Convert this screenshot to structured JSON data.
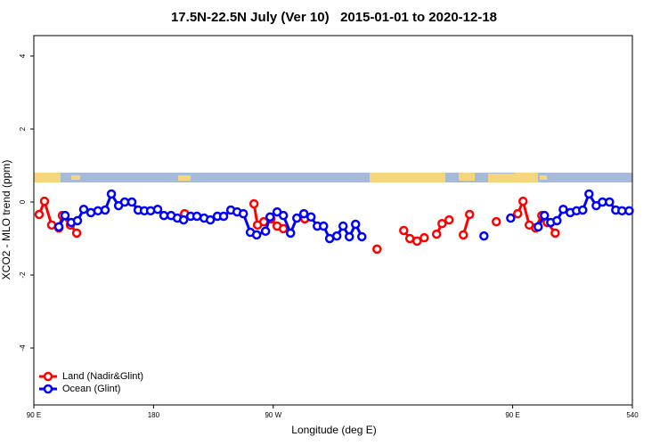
{
  "chart_data": {
    "type": "line",
    "title": "17.5N-22.5N July (Ver 10)   2015-01-01 to 2020-12-18",
    "xlabel": "Longitude (deg E)",
    "ylabel": "XCO2 - MLO trend (ppm)",
    "xlim": [
      90,
      540
    ],
    "ylim": [
      -5.56,
      4.56
    ],
    "xticks": [
      {
        "value": 90,
        "label": "90 E"
      },
      180,
      {
        "value": 270,
        "label": "90 W"
      },
      {
        "value": 450,
        "label": "90 E"
      },
      540
    ],
    "yticks": [
      4,
      2,
      0,
      -2,
      -4
    ],
    "legend": "bottom-left",
    "series": [
      {
        "name": "Land (Nadir&Glint)",
        "color": "#ff0000",
        "x": [
          94,
          98,
          103.4,
          108.8,
          111.4,
          117.5,
          122.2,
          null,
          203.3,
          null,
          255.5,
          258.2,
          262.9,
          268.2,
          272.9,
          277.6,
          null,
          293.7,
          null,
          348,
          null,
          368.1,
          372.7,
          378.1,
          383.5,
          null,
          392.8,
          396.9,
          402.2,
          null,
          412.9,
          417.6,
          null,
          437.7,
          null,
          453.8,
          457.8,
          462.5,
          467.2,
          471.9,
          476,
          482
        ],
        "values": [
          -0.34,
          0.02,
          -0.63,
          -0.71,
          -0.37,
          -0.63,
          -0.85,
          null,
          -0.32,
          null,
          -0.05,
          -0.63,
          -0.54,
          -0.46,
          -0.66,
          -0.73,
          null,
          -0.46,
          null,
          -1.29,
          null,
          -0.78,
          -1.0,
          -1.07,
          -0.98,
          null,
          -0.88,
          -0.59,
          -0.49,
          null,
          -0.9,
          -0.34,
          null,
          -0.54,
          null,
          -0.32,
          0.02,
          -0.63,
          -0.71,
          -0.37,
          -0.56,
          -0.85
        ]
      },
      {
        "name": "Ocean (Glint)",
        "color": "#0000ff",
        "x": [
          108.8,
          113.5,
          118.1,
          122.8,
          127.5,
          132.9,
          138.2,
          143.6,
          148.3,
          153.7,
          158.3,
          163.7,
          168.4,
          173.1,
          177.8,
          183.1,
          187.8,
          193.2,
          197.9,
          202.6,
          207.9,
          212.6,
          218,
          222.7,
          228,
          232.7,
          238.1,
          242.8,
          247.5,
          252.8,
          257.5,
          264.2,
          267.6,
          272.9,
          277.6,
          283,
          287.7,
          293,
          298.4,
          303.1,
          307.8,
          312.4,
          317.8,
          322.5,
          327.2,
          331.9,
          336.6,
          null,
          428.4,
          null,
          448.5,
          null,
          469.2,
          473.9,
          478.6,
          483.3,
          488,
          493.3,
          498,
          502.7,
          507.4,
          512.8,
          517.5,
          522.8,
          527.5,
          532.2,
          537.6
        ],
        "values": [
          -0.68,
          -0.37,
          -0.56,
          -0.51,
          -0.2,
          -0.29,
          -0.24,
          -0.22,
          0.22,
          -0.1,
          0,
          0,
          -0.22,
          -0.24,
          -0.24,
          -0.2,
          -0.37,
          -0.37,
          -0.44,
          -0.49,
          -0.39,
          -0.39,
          -0.44,
          -0.49,
          -0.39,
          -0.39,
          -0.22,
          -0.27,
          -0.32,
          -0.83,
          -0.9,
          -0.8,
          -0.41,
          -0.27,
          -0.37,
          -0.85,
          -0.44,
          -0.32,
          -0.41,
          -0.66,
          -0.66,
          -1.0,
          -0.93,
          -0.66,
          -0.95,
          -0.61,
          -0.95,
          null,
          -0.93,
          null,
          -0.44,
          null,
          -0.68,
          -0.37,
          -0.56,
          -0.51,
          -0.2,
          -0.29,
          -0.24,
          -0.22,
          0.22,
          -0.1,
          0,
          0,
          -0.22,
          -0.24,
          -0.24
        ]
      }
    ]
  }
}
